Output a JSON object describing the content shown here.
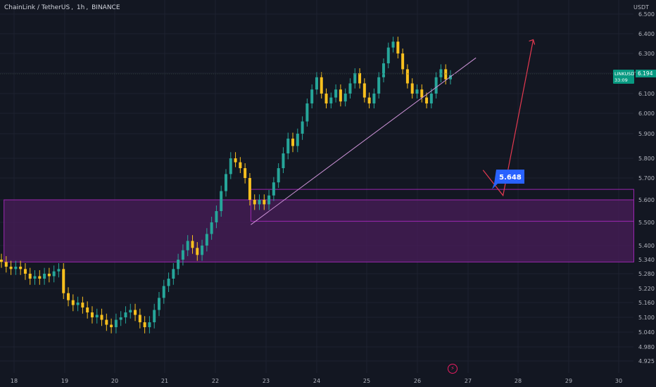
{
  "header": {
    "symbol_name": "ChainLink / TetherUS",
    "interval": "1h",
    "exchange": "BINANCE"
  },
  "price_axis": {
    "currency": "USDT",
    "ticks": [
      "6.500",
      "6.400",
      "6.300",
      "6.200",
      "6.100",
      "6.000",
      "5.900",
      "5.800",
      "5.700",
      "5.600",
      "5.500",
      "5.400",
      "5.340",
      "5.280",
      "5.220",
      "5.160",
      "5.100",
      "5.040",
      "4.980",
      "4.925"
    ]
  },
  "last_price": {
    "ticker": "LINKUSDT",
    "value": "6.194",
    "countdown": "33:09",
    "color": "#089981"
  },
  "annotation": {
    "label": "5.648",
    "color": "#2962ff"
  },
  "colors": {
    "up": "#26a69a",
    "up_dark": "#1b5e20",
    "down": "#f9c01e",
    "zone": "#4a1e5a",
    "zone_border": "#9c27b0",
    "trendline": "#ce93d8",
    "forecast": "#e53950"
  },
  "chart_data": {
    "type": "candlestick",
    "title": "",
    "x_ticks": [
      "18",
      "19",
      "20",
      "21",
      "22",
      "23",
      "24",
      "25",
      "26",
      "27",
      "28",
      "29",
      "30"
    ],
    "ylim": [
      4.9,
      6.55
    ],
    "zones": [
      {
        "y_low": 5.33,
        "y_high": 5.6,
        "x_start": "17.8",
        "x_end": "30.3"
      },
      {
        "y_low": 5.505,
        "y_high": 5.648,
        "x_start": "22.7",
        "x_end": "30.3"
      }
    ],
    "trendline": {
      "from": {
        "x": "22.7",
        "y": 5.49
      },
      "to": {
        "x": "26.6",
        "y": 6.26
      }
    },
    "forecast_path": [
      {
        "x": "27.3",
        "y": 5.74
      },
      {
        "x": "27.7",
        "y": 5.62
      },
      {
        "x": "28.3",
        "y": 6.37
      }
    ],
    "candles_close": [
      5.33,
      5.31,
      5.3,
      5.31,
      5.3,
      5.28,
      5.26,
      5.27,
      5.26,
      5.28,
      5.27,
      5.29,
      5.3,
      5.2,
      5.17,
      5.15,
      5.16,
      5.14,
      5.12,
      5.1,
      5.11,
      5.09,
      5.07,
      5.06,
      5.09,
      5.1,
      5.12,
      5.13,
      5.11,
      5.08,
      5.06,
      5.08,
      5.13,
      5.18,
      5.23,
      5.26,
      5.3,
      5.34,
      5.38,
      5.42,
      5.39,
      5.36,
      5.4,
      5.45,
      5.5,
      5.55,
      5.64,
      5.72,
      5.8,
      5.78,
      5.75,
      5.7,
      5.6,
      5.58,
      5.6,
      5.58,
      5.62,
      5.68,
      5.75,
      5.82,
      5.88,
      5.85,
      5.9,
      5.96,
      6.05,
      6.12,
      6.18,
      6.1,
      6.05,
      6.08,
      6.12,
      6.06,
      6.1,
      6.15,
      6.2,
      6.15,
      6.08,
      6.05,
      6.1,
      6.18,
      6.25,
      6.33,
      6.36,
      6.3,
      6.22,
      6.15,
      6.1,
      6.12,
      6.08,
      6.05,
      6.1,
      6.18,
      6.22,
      6.17,
      6.19
    ]
  }
}
